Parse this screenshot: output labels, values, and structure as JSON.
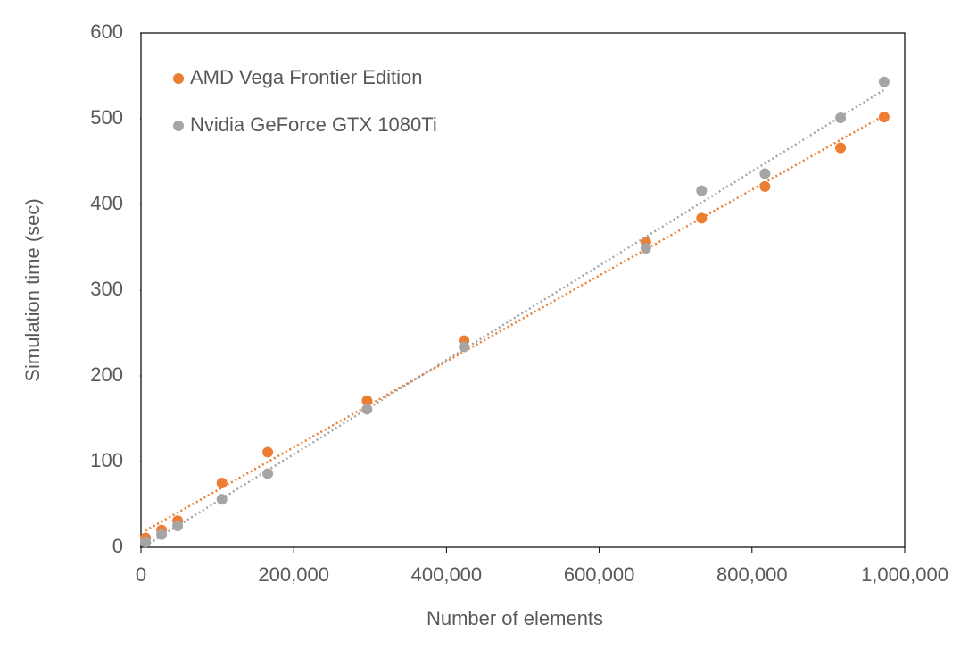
{
  "chart_data": {
    "type": "scatter",
    "xlabel": "Number of elements",
    "ylabel": "Simulation time (sec)",
    "xlim": [
      0,
      1000000
    ],
    "ylim": [
      0,
      600
    ],
    "xticks": [
      0,
      {
        "value": 200000,
        "label": "200,000"
      },
      {
        "value": 400000,
        "label": "400,000"
      },
      {
        "value": 600000,
        "label": "600,000"
      },
      {
        "value": 800000,
        "label": "800,000"
      },
      {
        "value": 1000000,
        "label": "1,000,000"
      }
    ],
    "yticks": [
      0,
      100,
      200,
      300,
      400,
      500,
      600
    ],
    "grid": false,
    "legend": "upper left",
    "trendline": "linear",
    "series": [
      {
        "name": "AMD Vega Frontier Edition",
        "color": "#ed7d31",
        "x": [
          6000,
          27000,
          48000,
          106000,
          166000,
          296000,
          423000,
          661000,
          734000,
          817000,
          916000,
          973000
        ],
        "values": [
          11,
          20,
          31,
          75,
          111,
          171,
          241,
          356,
          384,
          421,
          466,
          502
        ]
      },
      {
        "name": "Nvidia GeForce GTX 1080Ti",
        "color": "#a5a5a5",
        "x": [
          6000,
          27000,
          48000,
          106000,
          166000,
          296000,
          423000,
          661000,
          734000,
          817000,
          916000,
          973000
        ],
        "values": [
          6,
          15,
          25,
          56,
          86,
          161,
          234,
          349,
          416,
          436,
          501,
          543
        ]
      }
    ]
  }
}
